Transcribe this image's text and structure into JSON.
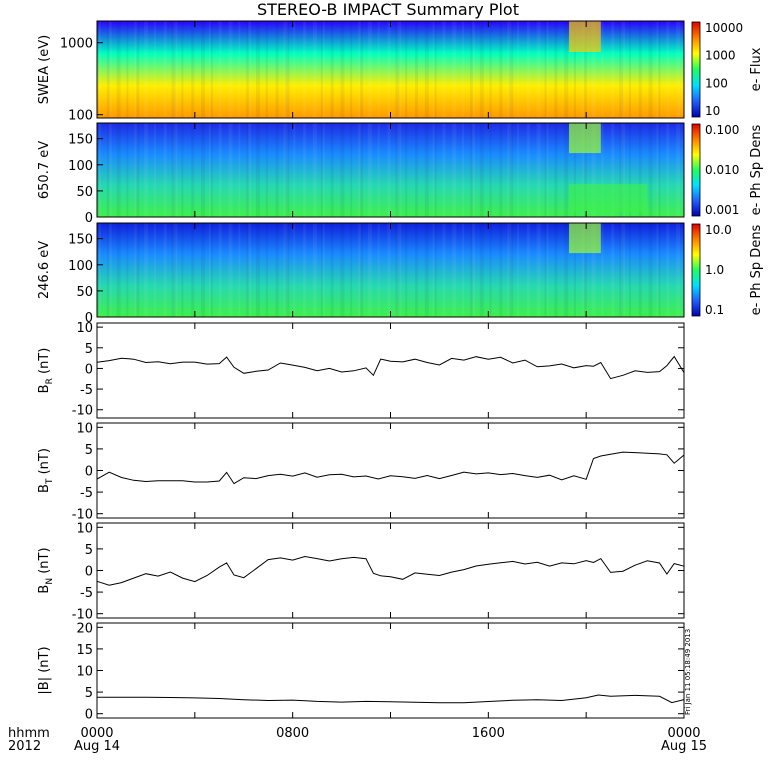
{
  "chart_data": {
    "type": "line",
    "title": "STEREO-B IMPACT Summary Plot",
    "x_ticks": [
      "0000",
      "0800",
      "1600",
      "0000"
    ],
    "x_date_labels": [
      "Aug 14",
      "Aug 15"
    ],
    "x_axis_labels": [
      "hhmm",
      "2012"
    ],
    "x_range": [
      0,
      24
    ],
    "timestamp": "Fri Jan 11 05:18:49 2013",
    "panels": [
      {
        "kind": "spectrogram",
        "ylabel": "SWEA (eV)",
        "ylog": true,
        "ylim": [
          90,
          2000
        ],
        "yticks": [
          "1000",
          "100"
        ],
        "colorbar": {
          "label": "e- Flux",
          "ticks": [
            "10000",
            "1000",
            "100",
            "10"
          ],
          "scale": "log"
        },
        "colors": [
          "#2b00ff",
          "#00ffc0",
          "#ffee00",
          "#ff9900"
        ]
      },
      {
        "kind": "spectrogram",
        "ylabel": "650.7 eV",
        "ylim": [
          0,
          180
        ],
        "yticks": [
          "150",
          "100",
          "50",
          "0"
        ],
        "colorbar": {
          "label": "e- Ph Sp Dens",
          "ticks": [
            "0.100",
            "0.010",
            "0.001"
          ],
          "scale": "log"
        },
        "colors": [
          "#1e2be6",
          "#1a8cff",
          "#26d9b0",
          "#3ff04a"
        ]
      },
      {
        "kind": "spectrogram",
        "ylabel": "246.6 eV",
        "ylim": [
          0,
          180
        ],
        "yticks": [
          "150",
          "100",
          "50",
          "0"
        ],
        "colorbar": {
          "label": "e- Ph Sp Dens",
          "ticks": [
            "10.0",
            "1.0",
            "0.1"
          ],
          "scale": "log"
        },
        "colors": [
          "#1020dd",
          "#1a8cff",
          "#26d9b0",
          "#3ff04a"
        ]
      },
      {
        "kind": "line",
        "ylabel": "B_R (nT)",
        "ylabel_main": "B",
        "ylabel_sub": "R",
        "ylabel_unit": "(nT)",
        "ylim": [
          -12,
          11
        ],
        "yticks": [
          10,
          5,
          0,
          -5,
          -10
        ],
        "x": [
          0,
          0.5,
          1,
          1.5,
          2,
          2.5,
          3,
          3.5,
          4,
          4.5,
          5,
          5.3,
          5.6,
          6,
          6.5,
          7,
          7.5,
          8,
          8.5,
          9,
          9.5,
          10,
          10.5,
          11,
          11.3,
          11.6,
          12,
          12.5,
          13,
          13.5,
          14,
          14.5,
          15,
          15.5,
          16,
          16.5,
          17,
          17.5,
          18,
          18.5,
          19,
          19.5,
          20,
          20.3,
          20.6,
          21,
          21.5,
          22,
          22.5,
          23,
          23.3,
          23.6,
          24
        ],
        "y": [
          1.5,
          1.8,
          2.3,
          2.0,
          1.2,
          1.4,
          1.0,
          1.5,
          1.6,
          1.2,
          1.4,
          3.0,
          0.5,
          -1.0,
          -0.6,
          -0.4,
          1.2,
          0.6,
          0.0,
          -0.8,
          -0.2,
          -1.0,
          -0.6,
          0.2,
          -1.5,
          2.5,
          2.0,
          1.8,
          2.4,
          1.5,
          0.8,
          2.3,
          1.8,
          2.6,
          2.0,
          2.5,
          1.2,
          2.0,
          0.5,
          0.8,
          1.3,
          0.4,
          0.9,
          0.7,
          1.5,
          -2.5,
          -1.8,
          -0.8,
          -1.2,
          -1.0,
          0.5,
          2.8,
          -1.0
        ]
      },
      {
        "kind": "line",
        "ylabel": "B_T (nT)",
        "ylabel_main": "B",
        "ylabel_sub": "T",
        "ylabel_unit": "(nT)",
        "ylim": [
          -11,
          11
        ],
        "yticks": [
          10,
          5,
          0,
          -5,
          -10
        ],
        "x": [
          0,
          0.5,
          1,
          1.5,
          2,
          2.5,
          3,
          3.5,
          4,
          4.5,
          5,
          5.3,
          5.6,
          6,
          6.5,
          7,
          7.5,
          8,
          8.5,
          9,
          9.5,
          10,
          10.5,
          11,
          11.5,
          12,
          12.5,
          13,
          13.5,
          14,
          14.5,
          15,
          15.5,
          16,
          16.5,
          17,
          17.5,
          18,
          18.5,
          19,
          19.5,
          20,
          20.3,
          20.6,
          21,
          21.5,
          22,
          22.5,
          23,
          23.3,
          23.6,
          24
        ],
        "y": [
          -2.0,
          -0.5,
          -1.8,
          -2.5,
          -2.8,
          -2.6,
          -2.5,
          -2.4,
          -2.6,
          -2.5,
          -2.2,
          -0.2,
          -2.8,
          -1.5,
          -1.8,
          -1.2,
          -1.0,
          -1.5,
          -0.8,
          -1.8,
          -1.2,
          -1.0,
          -1.5,
          -1.2,
          -1.8,
          -1.0,
          -1.2,
          -1.6,
          -1.0,
          -1.8,
          -1.2,
          -0.5,
          -1.0,
          -0.8,
          -1.2,
          -0.9,
          -1.3,
          -1.6,
          -1.0,
          -2.0,
          -1.0,
          -1.8,
          3.0,
          3.5,
          3.8,
          4.2,
          4.0,
          3.8,
          3.6,
          3.4,
          1.5,
          3.5
        ]
      },
      {
        "kind": "line",
        "ylabel": "B_N (nT)",
        "ylabel_main": "B",
        "ylabel_sub": "N",
        "ylabel_unit": "(nT)",
        "ylim": [
          -11,
          11
        ],
        "yticks": [
          10,
          5,
          0,
          -5,
          -10
        ],
        "x": [
          0,
          0.5,
          1,
          1.5,
          2,
          2.5,
          3,
          3.5,
          4,
          4.5,
          5,
          5.3,
          5.6,
          6,
          6.5,
          7,
          7.5,
          8,
          8.5,
          9,
          9.5,
          10,
          10.5,
          11,
          11.3,
          11.6,
          12,
          12.5,
          13,
          13.5,
          14,
          14.5,
          15,
          15.5,
          16,
          16.5,
          17,
          17.5,
          18,
          18.5,
          19,
          19.5,
          20,
          20.3,
          20.6,
          21,
          21.5,
          22,
          22.5,
          23,
          23.3,
          23.6,
          24
        ],
        "y": [
          -2.5,
          -3.5,
          -3.0,
          -2.0,
          -1.0,
          -1.5,
          -0.5,
          -1.8,
          -2.5,
          -1.0,
          1.0,
          2.0,
          -0.8,
          -1.5,
          0.5,
          2.5,
          2.8,
          2.2,
          3.0,
          2.5,
          2.0,
          2.6,
          3.0,
          2.8,
          -0.5,
          -1.0,
          -1.2,
          -1.8,
          -0.4,
          -0.8,
          -1.2,
          -0.5,
          0.0,
          0.8,
          1.2,
          1.6,
          2.0,
          1.5,
          2.0,
          1.2,
          2.0,
          1.8,
          2.5,
          2.0,
          2.8,
          -0.5,
          -0.3,
          1.0,
          2.0,
          1.5,
          -1.0,
          1.5,
          1.0
        ]
      },
      {
        "kind": "line",
        "ylabel": "|B| (nT)",
        "ylim": [
          -1,
          21
        ],
        "yticks": [
          20,
          15,
          10,
          5,
          0
        ],
        "x": [
          0,
          1,
          2,
          3,
          4,
          5,
          6,
          7,
          8,
          9,
          10,
          11,
          12,
          13,
          14,
          15,
          16,
          17,
          18,
          19,
          20,
          20.5,
          21,
          22,
          23,
          23.5,
          24
        ],
        "y": [
          3.8,
          3.7,
          3.6,
          3.5,
          3.4,
          3.3,
          3.1,
          3.0,
          3.2,
          3.0,
          2.9,
          3.1,
          3.0,
          2.8,
          2.6,
          2.5,
          2.7,
          2.9,
          3.0,
          2.8,
          3.5,
          4.2,
          4.0,
          4.3,
          4.2,
          2.8,
          3.5
        ]
      }
    ]
  }
}
